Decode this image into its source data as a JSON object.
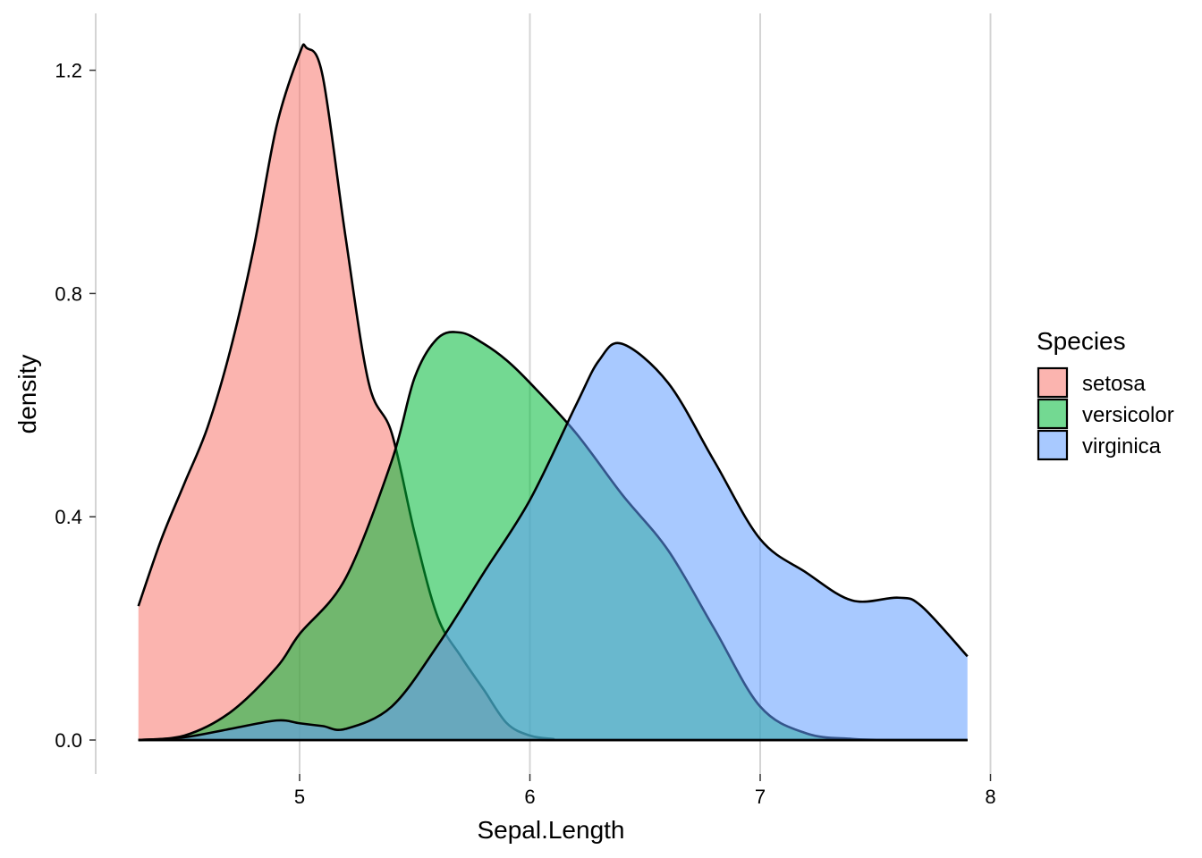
{
  "chart_data": {
    "type": "area",
    "xlabel": "Sepal.Length",
    "ylabel": "density",
    "xlim": [
      4.1,
      8.0
    ],
    "ylim": [
      -0.07,
      1.3
    ],
    "x_ticks": [
      5,
      6,
      7,
      8
    ],
    "y_ticks": [
      0.0,
      0.4,
      0.8,
      1.2
    ],
    "x_tick_labels": [
      "5",
      "6",
      "7",
      "8"
    ],
    "y_tick_labels": [
      "0.0",
      "0.4",
      "0.8",
      "1.2"
    ],
    "grid": "vertical major",
    "legend": {
      "title": "Species",
      "position": "right"
    },
    "series": [
      {
        "name": "setosa",
        "fill": "#F8766D",
        "x": [
          4.3,
          4.4,
          4.5,
          4.6,
          4.7,
          4.8,
          4.9,
          5.0,
          5.03,
          5.1,
          5.2,
          5.3,
          5.4,
          5.5,
          5.6,
          5.7,
          5.8,
          5.9,
          6.0,
          6.1,
          6.2,
          7.9
        ],
        "y": [
          0.24,
          0.36,
          0.46,
          0.56,
          0.7,
          0.88,
          1.1,
          1.23,
          1.24,
          1.19,
          0.9,
          0.64,
          0.55,
          0.37,
          0.22,
          0.15,
          0.09,
          0.03,
          0.008,
          0.002,
          0.0,
          0.0
        ]
      },
      {
        "name": "versicolor",
        "fill": "#00BA38",
        "x": [
          4.3,
          4.5,
          4.7,
          4.9,
          5.0,
          5.2,
          5.4,
          5.5,
          5.6,
          5.7,
          5.8,
          5.9,
          6.0,
          6.2,
          6.4,
          6.6,
          6.8,
          7.0,
          7.2,
          7.4,
          7.6,
          7.9
        ],
        "y": [
          0.0,
          0.008,
          0.05,
          0.13,
          0.19,
          0.29,
          0.5,
          0.65,
          0.72,
          0.73,
          0.71,
          0.68,
          0.64,
          0.55,
          0.44,
          0.34,
          0.2,
          0.06,
          0.012,
          0.002,
          0.0,
          0.0
        ]
      },
      {
        "name": "virginica",
        "fill": "#619CFF",
        "x": [
          4.3,
          4.5,
          4.7,
          4.9,
          5.0,
          5.1,
          5.2,
          5.4,
          5.6,
          5.8,
          6.0,
          6.2,
          6.3,
          6.4,
          6.6,
          6.8,
          7.0,
          7.2,
          7.4,
          7.6,
          7.7,
          7.9
        ],
        "y": [
          0.0,
          0.005,
          0.02,
          0.035,
          0.03,
          0.025,
          0.02,
          0.06,
          0.17,
          0.3,
          0.43,
          0.6,
          0.68,
          0.71,
          0.64,
          0.5,
          0.36,
          0.3,
          0.25,
          0.255,
          0.24,
          0.15
        ]
      }
    ]
  }
}
